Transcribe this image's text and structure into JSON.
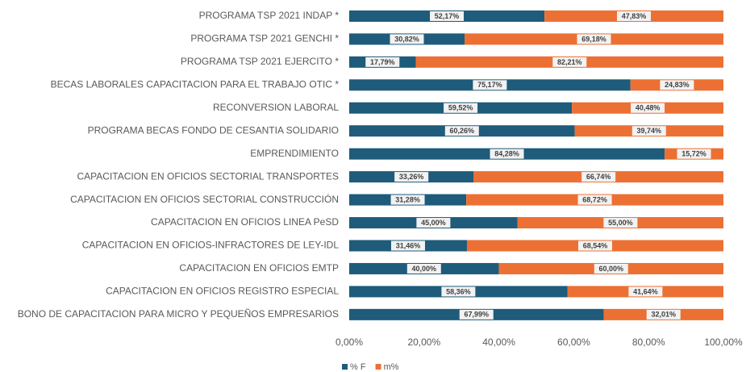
{
  "chart_data": {
    "type": "stacked_bar_horizontal",
    "categories": [
      "PROGRAMA TSP 2021 INDAP *",
      "PROGRAMA TSP 2021 GENCHI *",
      "PROGRAMA TSP 2021 EJERCITO *",
      "BECAS LABORALES CAPACITACION PARA EL TRABAJO OTIC *",
      "RECONVERSION LABORAL",
      "PROGRAMA BECAS FONDO DE CESANTIA SOLIDARIO",
      "EMPRENDIMIENTO",
      "CAPACITACION EN OFICIOS SECTORIAL TRANSPORTES",
      "CAPACITACION EN OFICIOS SECTORIAL CONSTRUCCIÓN",
      "CAPACITACION EN OFICIOS LINEA PeSD",
      "CAPACITACION EN OFICIOS-INFRACTORES DE LEY-IDL",
      "CAPACITACION EN OFICIOS EMTP",
      "CAPACITACION EN OFICIOS REGISTRO ESPECIAL",
      "BONO DE CAPACITACION PARA MICRO Y PEQUEÑOS EMPRESARIOS"
    ],
    "series": [
      {
        "name": "% F",
        "color": "#1f5b7a",
        "values": [
          52.17,
          30.82,
          17.79,
          75.17,
          59.52,
          60.26,
          84.28,
          33.26,
          31.28,
          45.0,
          31.46,
          40.0,
          58.36,
          67.99
        ],
        "value_labels": [
          "52,17%",
          "30,82%",
          "17,79%",
          "75,17%",
          "59,52%",
          "60,26%",
          "84,28%",
          "33,26%",
          "31,28%",
          "45,00%",
          "31,46%",
          "40,00%",
          "58,36%",
          "67,99%"
        ]
      },
      {
        "name": "m%",
        "color": "#ec7033",
        "values": [
          47.83,
          69.18,
          82.21,
          24.83,
          40.48,
          39.74,
          15.72,
          66.74,
          68.72,
          55.0,
          68.54,
          60.0,
          41.64,
          32.01
        ],
        "value_labels": [
          "47,83%",
          "69,18%",
          "82,21%",
          "24,83%",
          "40,48%",
          "39,74%",
          "15,72%",
          "66,74%",
          "68,72%",
          "55,00%",
          "68,54%",
          "60,00%",
          "41,64%",
          "32,01%"
        ]
      }
    ],
    "xlim": [
      0,
      100
    ],
    "xticks": [
      {
        "value": 0,
        "label": "0,00%"
      },
      {
        "value": 20,
        "label": "20,00%"
      },
      {
        "value": 40,
        "label": "40,00%"
      },
      {
        "value": 60,
        "label": "60,00%"
      },
      {
        "value": 80,
        "label": "80,00%"
      },
      {
        "value": 100,
        "label": "100,00%"
      }
    ],
    "legend": "bottom",
    "grid": false
  }
}
